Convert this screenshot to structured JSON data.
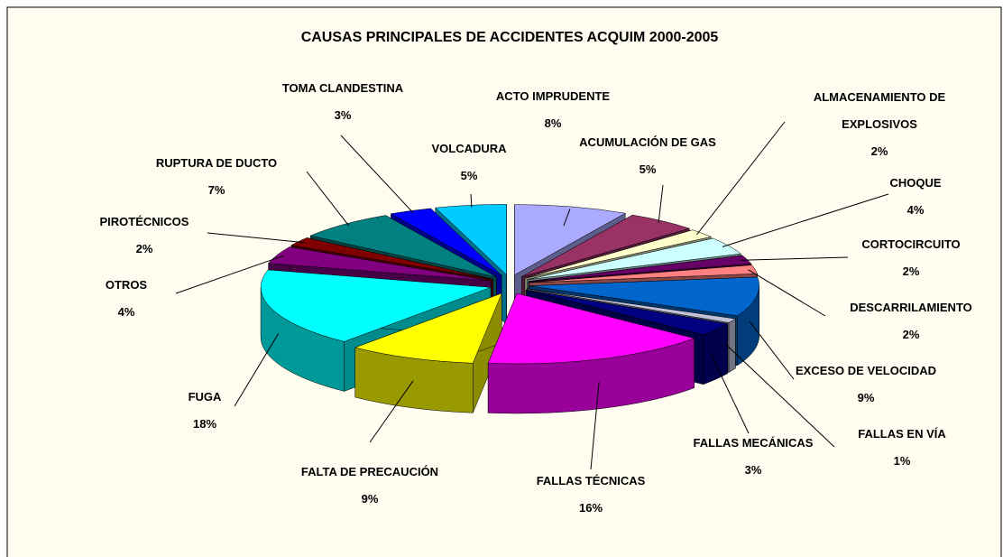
{
  "chart_data": {
    "type": "pie3d",
    "title": "CAUSAS PRINCIPALES DE ACCIDENTES ACQUIM 2000-2005",
    "categories": [
      "ACTO IMPRUDENTE",
      "ACUMULACIÓN DE GAS",
      "ALMACENAMIENTO DE EXPLOSIVOS",
      "CHOQUE",
      "CORTOCIRCUITO",
      "DESCARRILAMIENTO",
      "EXCESO DE VELOCIDAD",
      "FALLAS EN VÍA",
      "FALLAS MECÁNICAS",
      "FALLAS TÉCNICAS",
      "FALTA DE PRECAUCIÓN",
      "FUGA",
      "OTROS",
      "PIROTÉCNICOS",
      "RUPTURA DE DUCTO",
      "TOMA CLANDESTINA",
      "VOLCADURA"
    ],
    "values": [
      8,
      5,
      2,
      4,
      2,
      2,
      9,
      1,
      3,
      16,
      9,
      18,
      4,
      2,
      7,
      3,
      5
    ],
    "value_labels": [
      "8%",
      "5%",
      "2%",
      "4%",
      "2%",
      "2%",
      "9%",
      "1%",
      "3%",
      "16%",
      "9%",
      "18%",
      "4%",
      "2%",
      "7%",
      "3%",
      "5%"
    ],
    "colors": [
      "#aaaaff",
      "#993366",
      "#ffffcc",
      "#ccffff",
      "#660066",
      "#ff8080",
      "#0066cc",
      "#c0c0d8",
      "#000080",
      "#ff00ff",
      "#ffff00",
      "#00ffff",
      "#800080",
      "#800000",
      "#008080",
      "#0000ff",
      "#00ccff"
    ]
  }
}
